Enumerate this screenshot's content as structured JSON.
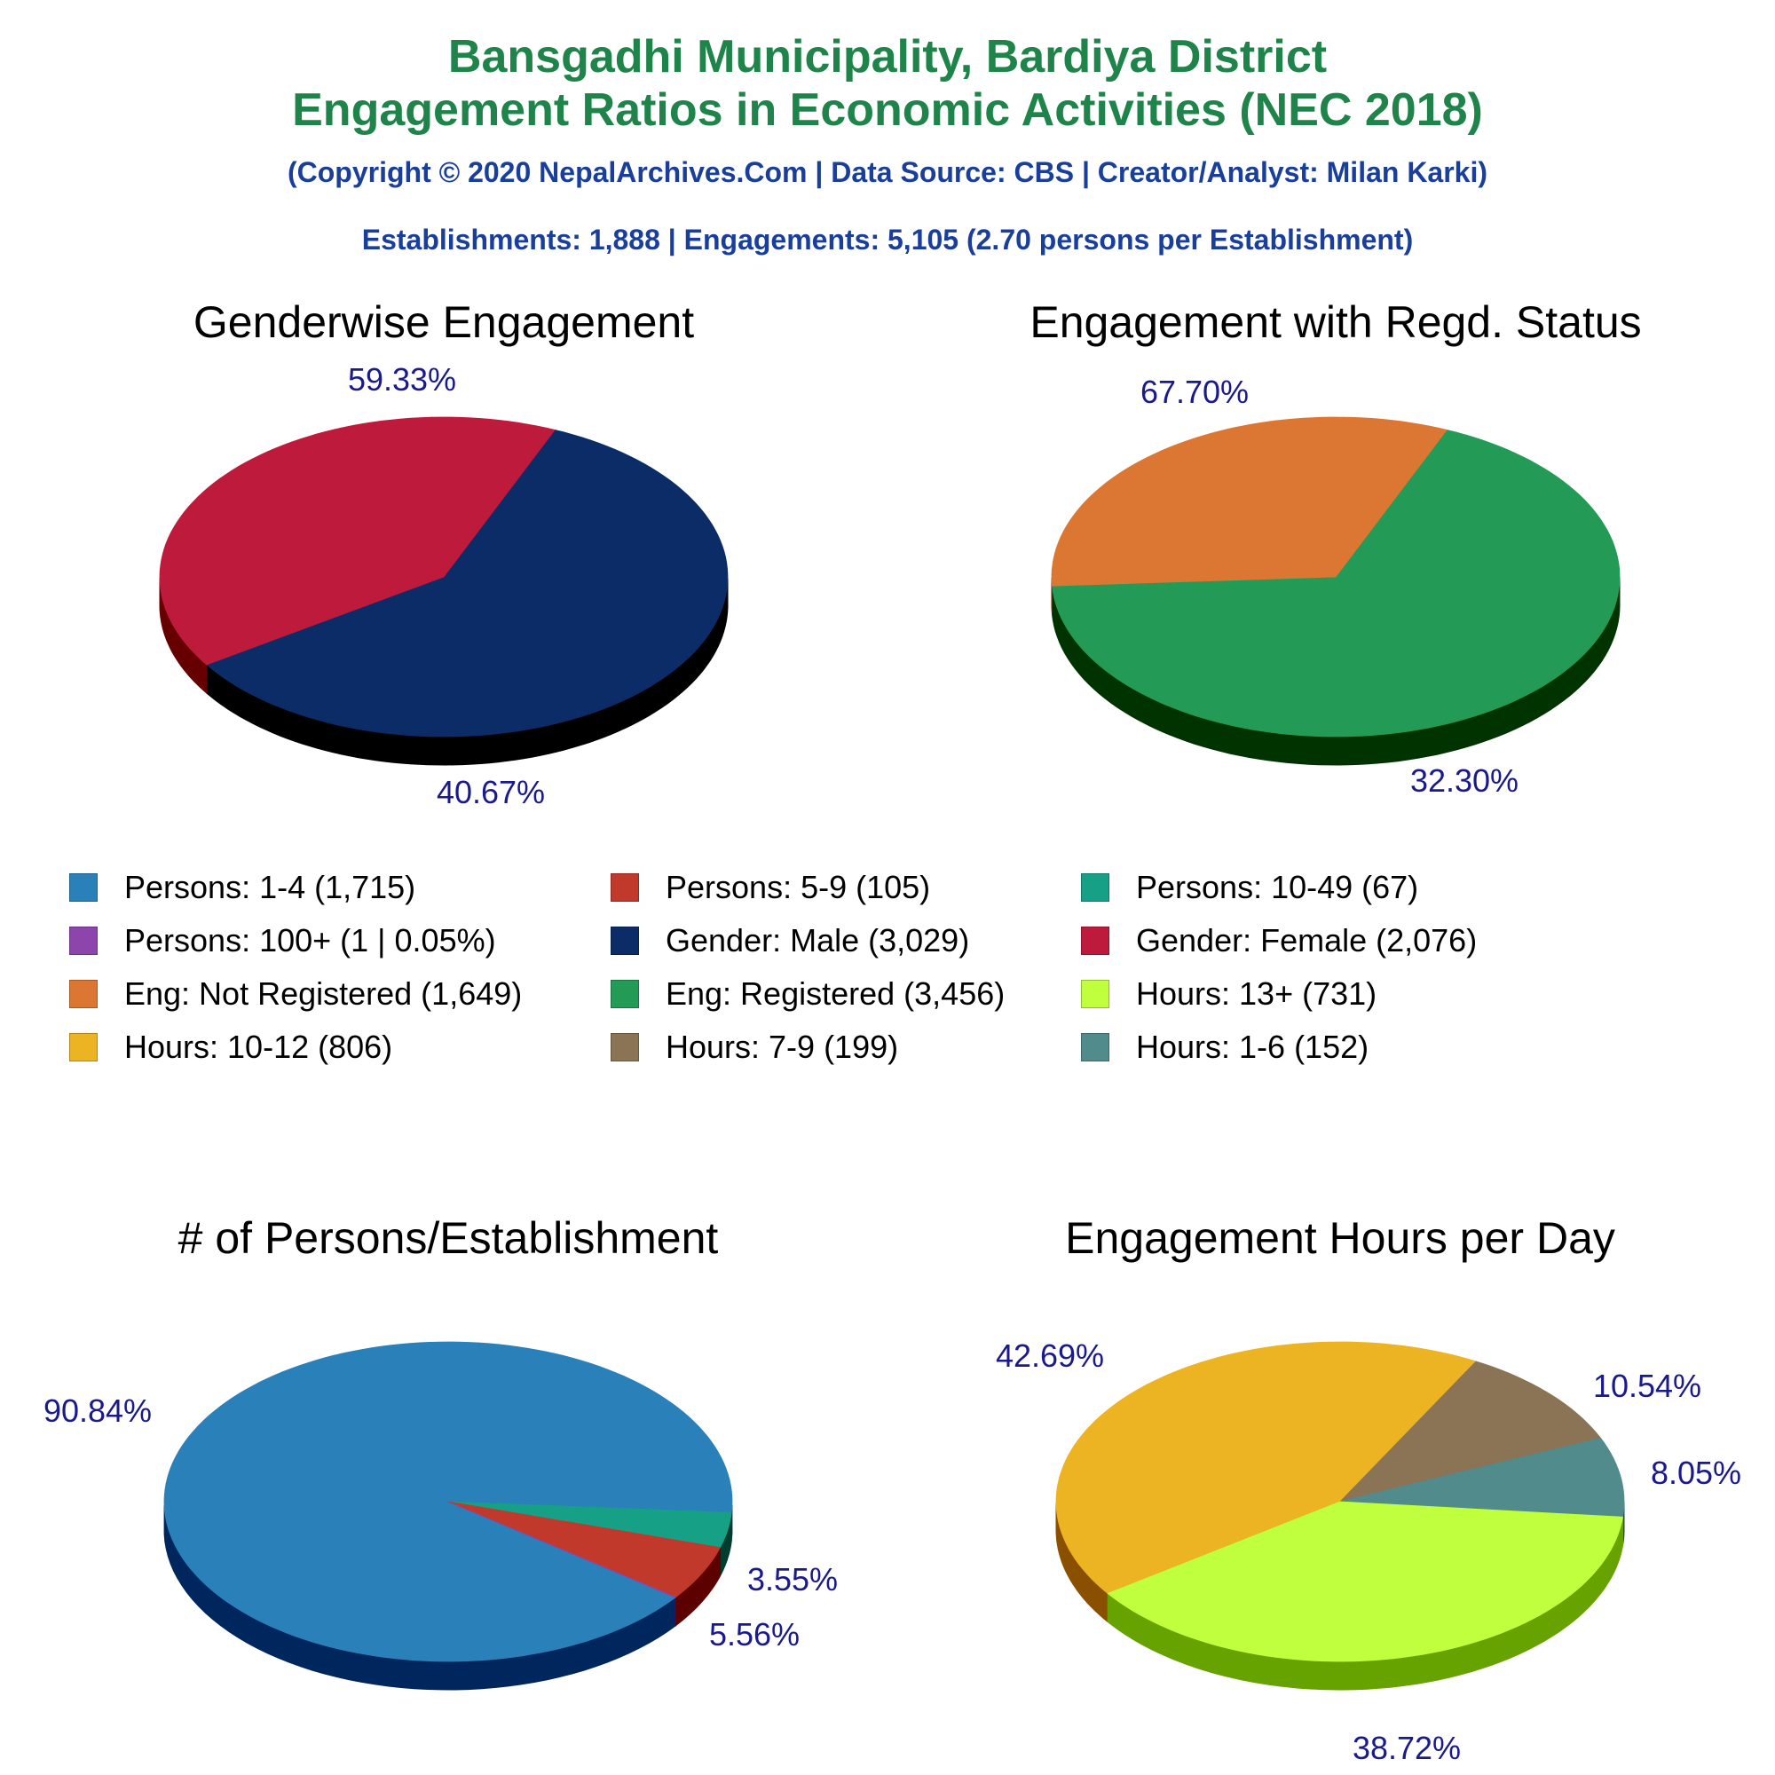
{
  "header": {
    "title_line1": "Bansgadhi Municipality, Bardiya District",
    "title_line2": "Engagement Ratios in Economic Activities (NEC 2018)",
    "copyright": "(Copyright © 2020 NepalArchives.Com | Data Source: CBS | Creator/Analyst: Milan Karki)",
    "summary": "Establishments: 1,888 | Engagements: 5,105 (2.70 persons per Establishment)"
  },
  "colors": {
    "title": "#1e8449",
    "subtitle": "#1a3f9a",
    "pct_label": "#1a1a8c"
  },
  "legend": [
    {
      "label": "Persons: 1-4 (1,715)",
      "color": "#2a80b9"
    },
    {
      "label": "Persons: 5-9 (105)",
      "color": "#c0392b"
    },
    {
      "label": "Persons: 10-49 (67)",
      "color": "#16a085"
    },
    {
      "label": "Persons: 100+ (1 | 0.05%)",
      "color": "#8e44ad"
    },
    {
      "label": "Gender: Male (3,029)",
      "color": "#0b2c66"
    },
    {
      "label": "Gender: Female (2,076)",
      "color": "#bd1a3c"
    },
    {
      "label": "Eng: Not Registered (1,649)",
      "color": "#dc7633"
    },
    {
      "label": "Eng: Registered (3,456)",
      "color": "#239b56"
    },
    {
      "label": "Hours: 13+ (731)",
      "color": "#c0ff3e"
    },
    {
      "label": "Hours: 10-12 (806)",
      "color": "#ecb322"
    },
    {
      "label": "Hours: 7-9 (199)",
      "color": "#8b7355"
    },
    {
      "label": "Hours: 1-6 (152)",
      "color": "#528b8b"
    }
  ],
  "chart_data": [
    {
      "type": "pie",
      "title": "Genderwise Engagement",
      "slices": [
        {
          "name": "Gender: Male",
          "value": 59.33,
          "label": "59.33%",
          "color": "#0b2c66",
          "side_color": "#000000"
        },
        {
          "name": "Gender: Female",
          "value": 40.67,
          "label": "40.67%",
          "color": "#bd1a3c",
          "side_color": "#660000"
        }
      ]
    },
    {
      "type": "pie",
      "title": "Engagement with Regd. Status",
      "slices": [
        {
          "name": "Eng: Registered",
          "value": 67.7,
          "label": "67.70%",
          "color": "#239b56",
          "side_color": "#003300"
        },
        {
          "name": "Eng: Not Registered",
          "value": 32.3,
          "label": "32.30%",
          "color": "#dc7633",
          "side_color": "#7a1a00"
        }
      ]
    },
    {
      "type": "pie",
      "title": "# of Persons/Establishment",
      "slices": [
        {
          "name": "Persons: 1-4",
          "value": 90.84,
          "label": "90.84%",
          "color": "#2a80b9",
          "side_color": "#00265e"
        },
        {
          "name": "Persons: 10-49",
          "value": 3.55,
          "label": "3.55%",
          "color": "#16a085",
          "side_color": "#003d2e"
        },
        {
          "name": "Persons: 5-9",
          "value": 5.56,
          "label": "5.56%",
          "color": "#c0392b",
          "side_color": "#5c0000"
        },
        {
          "name": "Persons: 100+",
          "value": 0.05,
          "label": "",
          "color": "#8e44ad",
          "side_color": "#3d0a56"
        }
      ]
    },
    {
      "type": "pie",
      "title": "Engagement Hours per Day",
      "slices": [
        {
          "name": "Hours: 10-12",
          "value": 42.69,
          "label": "42.69%",
          "color": "#ecb322",
          "side_color": "#8a5000"
        },
        {
          "name": "Hours: 7-9",
          "value": 10.54,
          "label": "10.54%",
          "color": "#8b7355",
          "side_color": "#4a3a20"
        },
        {
          "name": "Hours: 1-6",
          "value": 8.05,
          "label": "8.05%",
          "color": "#528b8b",
          "side_color": "#1f4a4a"
        },
        {
          "name": "Hours: 13+",
          "value": 38.72,
          "label": "38.72%",
          "color": "#c0ff3e",
          "side_color": "#66a300"
        }
      ]
    }
  ]
}
